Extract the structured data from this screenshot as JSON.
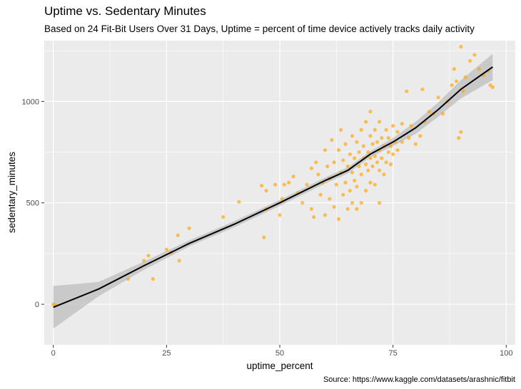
{
  "chart_data": {
    "type": "scatter",
    "title": "Uptime vs. Sedentary Minutes",
    "subtitle": "Based on 24 Fit-Bit Users Over 31 Days, Uptime = percent of time device actively tracks daily activity",
    "caption": "Source: https://www.kaggle.com/datasets/arashnic/fitbit",
    "xlabel": "uptime_percent",
    "ylabel": "sedentary_minutes",
    "xlim": [
      -2,
      102
    ],
    "ylim": [
      -200,
      1300
    ],
    "x_ticks": [
      "0",
      "25",
      "50",
      "75",
      "100"
    ],
    "x_tick_values": [
      0,
      25,
      50,
      75,
      100
    ],
    "y_ticks": [
      "0",
      "500",
      "1000"
    ],
    "y_tick_values": [
      0,
      500,
      1000
    ],
    "point_color": "#FFA500",
    "smooth_color": "#000000",
    "band_color": "#BEBEBE",
    "panel_color": "#EBEBEB",
    "grid": true,
    "legend": "none",
    "points": [
      [
        0.0,
        0
      ],
      [
        0.5,
        -5
      ],
      [
        16.5,
        125
      ],
      [
        20.0,
        215
      ],
      [
        21.0,
        240
      ],
      [
        22.0,
        125
      ],
      [
        25.0,
        270
      ],
      [
        26.0,
        255
      ],
      [
        27.5,
        340
      ],
      [
        27.8,
        215
      ],
      [
        30.0,
        375
      ],
      [
        37.5,
        430
      ],
      [
        41.0,
        505
      ],
      [
        46.5,
        330
      ],
      [
        46.0,
        585
      ],
      [
        47.0,
        560
      ],
      [
        47.0,
        470
      ],
      [
        49.0,
        590
      ],
      [
        50.0,
        440
      ],
      [
        50.5,
        520
      ],
      [
        51.0,
        590
      ],
      [
        52.0,
        600
      ],
      [
        53.0,
        630
      ],
      [
        54.0,
        550
      ],
      [
        55.0,
        500
      ],
      [
        56.0,
        590
      ],
      [
        57.0,
        470
      ],
      [
        57.5,
        430
      ],
      [
        57.0,
        670
      ],
      [
        58.0,
        700
      ],
      [
        58.5,
        640
      ],
      [
        59.0,
        540
      ],
      [
        59.5,
        600
      ],
      [
        60.0,
        440
      ],
      [
        60.0,
        760
      ],
      [
        60.5,
        680
      ],
      [
        61.0,
        520
      ],
      [
        61.0,
        620
      ],
      [
        61.5,
        810
      ],
      [
        62.0,
        480
      ],
      [
        62.0,
        700
      ],
      [
        62.5,
        590
      ],
      [
        63.0,
        420
      ],
      [
        63.0,
        760
      ],
      [
        63.5,
        650
      ],
      [
        63.5,
        860
      ],
      [
        64.0,
        540
      ],
      [
        64.0,
        710
      ],
      [
        64.5,
        600
      ],
      [
        64.5,
        790
      ],
      [
        65.0,
        470
      ],
      [
        65.0,
        680
      ],
      [
        65.5,
        560
      ],
      [
        65.5,
        740
      ],
      [
        66.0,
        500
      ],
      [
        66.0,
        650
      ],
      [
        66.0,
        830
      ],
      [
        66.5,
        610
      ],
      [
        66.5,
        720
      ],
      [
        67.0,
        470
      ],
      [
        67.0,
        580
      ],
      [
        67.0,
        800
      ],
      [
        67.5,
        680
      ],
      [
        67.5,
        750
      ],
      [
        68.0,
        500
      ],
      [
        68.0,
        640
      ],
      [
        68.0,
        860
      ],
      [
        68.5,
        720
      ],
      [
        68.5,
        780
      ],
      [
        69.0,
        560
      ],
      [
        69.0,
        690
      ],
      [
        69.0,
        900
      ],
      [
        69.5,
        750
      ],
      [
        69.5,
        660
      ],
      [
        70.0,
        600
      ],
      [
        70.0,
        720
      ],
      [
        70.0,
        830
      ],
      [
        70.0,
        950
      ],
      [
        70.5,
        680
      ],
      [
        70.5,
        790
      ],
      [
        71.0,
        590
      ],
      [
        71.0,
        730
      ],
      [
        71.0,
        860
      ],
      [
        71.5,
        700
      ],
      [
        71.5,
        800
      ],
      [
        72.0,
        500
      ],
      [
        72.0,
        660
      ],
      [
        72.0,
        760
      ],
      [
        72.0,
        900
      ],
      [
        72.5,
        720
      ],
      [
        72.5,
        820
      ],
      [
        73.0,
        640
      ],
      [
        73.0,
        780
      ],
      [
        73.5,
        700
      ],
      [
        73.5,
        860
      ],
      [
        74.0,
        750
      ],
      [
        74.0,
        820
      ],
      [
        74.5,
        690
      ],
      [
        74.5,
        780
      ],
      [
        75.0,
        740
      ],
      [
        75.0,
        880
      ],
      [
        75.5,
        800
      ],
      [
        76.0,
        760
      ],
      [
        76.0,
        850
      ],
      [
        77.0,
        800
      ],
      [
        77.0,
        890
      ],
      [
        78.0,
        1050
      ],
      [
        78.5,
        820
      ],
      [
        79.0,
        880
      ],
      [
        80.0,
        790
      ],
      [
        81.0,
        830
      ],
      [
        81.5,
        1060
      ],
      [
        82.0,
        900
      ],
      [
        83.0,
        950
      ],
      [
        84.0,
        940
      ],
      [
        85.0,
        1020
      ],
      [
        86.0,
        940
      ],
      [
        87.0,
        1000
      ],
      [
        88.0,
        1080
      ],
      [
        88.5,
        1160
      ],
      [
        89.0,
        1100
      ],
      [
        89.5,
        820
      ],
      [
        90.0,
        1270
      ],
      [
        90.0,
        850
      ],
      [
        90.5,
        1050
      ],
      [
        91.0,
        1120
      ],
      [
        92.0,
        1200
      ],
      [
        93.0,
        1230
      ],
      [
        94.0,
        1160
      ],
      [
        95.0,
        1130
      ],
      [
        96.0,
        1150
      ],
      [
        96.5,
        1080
      ],
      [
        97.0,
        1070
      ]
    ],
    "smooth": [
      [
        0,
        -15
      ],
      [
        10,
        75
      ],
      [
        20,
        190
      ],
      [
        30,
        300
      ],
      [
        40,
        395
      ],
      [
        50,
        500
      ],
      [
        60,
        610
      ],
      [
        65,
        660
      ],
      [
        70,
        740
      ],
      [
        75,
        800
      ],
      [
        80,
        870
      ],
      [
        85,
        960
      ],
      [
        90,
        1060
      ],
      [
        97,
        1170
      ]
    ],
    "band_lower": [
      [
        0,
        -120
      ],
      [
        10,
        40
      ],
      [
        20,
        170
      ],
      [
        30,
        285
      ],
      [
        40,
        380
      ],
      [
        50,
        485
      ],
      [
        60,
        595
      ],
      [
        65,
        645
      ],
      [
        70,
        725
      ],
      [
        75,
        780
      ],
      [
        80,
        840
      ],
      [
        85,
        925
      ],
      [
        90,
        1015
      ],
      [
        97,
        1105
      ]
    ],
    "band_upper": [
      [
        0,
        90
      ],
      [
        10,
        110
      ],
      [
        20,
        210
      ],
      [
        30,
        315
      ],
      [
        40,
        410
      ],
      [
        50,
        515
      ],
      [
        60,
        625
      ],
      [
        65,
        675
      ],
      [
        70,
        755
      ],
      [
        75,
        820
      ],
      [
        80,
        900
      ],
      [
        85,
        995
      ],
      [
        90,
        1105
      ],
      [
        97,
        1235
      ]
    ]
  }
}
